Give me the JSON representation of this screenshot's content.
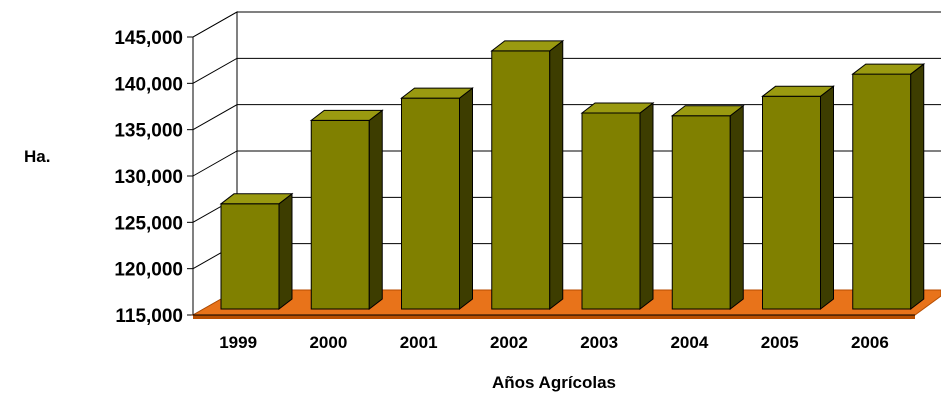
{
  "chart_data": {
    "type": "bar",
    "title": "",
    "xlabel": "Años Agrícolas",
    "ylabel": "Ha.",
    "categories": [
      "1999",
      "2000",
      "2001",
      "2002",
      "2003",
      "2004",
      "2005",
      "2006"
    ],
    "values": [
      127000,
      136000,
      138400,
      143500,
      136800,
      136500,
      138600,
      141000
    ],
    "yticks": [
      "115,000",
      "120,000",
      "125,000",
      "130,000",
      "135,000",
      "140,000",
      "145,000"
    ],
    "ylim": [
      115000,
      145000
    ],
    "grid": true,
    "legend": false,
    "style": "3d-column",
    "colors": {
      "bar_front": "#808000",
      "bar_side": "#3d3d00",
      "bar_top": "#9a9a10",
      "floor": "#e8731a",
      "floor_edge": "#b84e00",
      "gridline": "#000000"
    }
  }
}
